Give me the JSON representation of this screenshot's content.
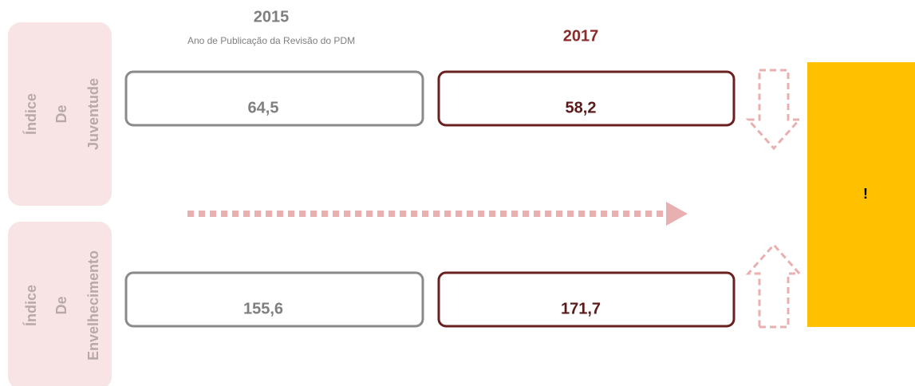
{
  "columns": [
    {
      "year": "2015",
      "subtitle": "Ano de Publicação da Revisão do PDM"
    },
    {
      "year": "2017"
    }
  ],
  "rows": [
    {
      "label": [
        "Índice",
        "De",
        "Juventude"
      ],
      "values": [
        "64,5",
        "58,2"
      ]
    },
    {
      "label": [
        "Índice",
        "De",
        "Envelhecimento"
      ],
      "values": [
        "155,6",
        "171,7"
      ]
    }
  ],
  "alert": "!"
}
